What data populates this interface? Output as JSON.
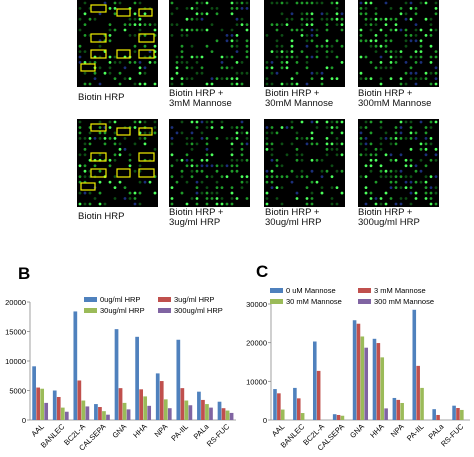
{
  "arrays": {
    "row1": [
      {
        "caption_lines": [
          "Biotin HRP"
        ],
        "boxed": true
      },
      {
        "caption_lines": [
          "Biotin HRP +",
          "3mM Mannose"
        ],
        "boxed": false
      },
      {
        "caption_lines": [
          "Biotin HRP +",
          "30mM Mannose"
        ],
        "boxed": false
      },
      {
        "caption_lines": [
          "Biotin HRP +",
          "300mM Mannose"
        ],
        "boxed": false
      }
    ],
    "row2": [
      {
        "caption_lines": [
          "Biotin HRP"
        ],
        "boxed": true
      },
      {
        "caption_lines": [
          "Biotin HRP +",
          "3ug/ml HRP"
        ],
        "boxed": false
      },
      {
        "caption_lines": [
          "Biotin HRP +",
          "30ug/ml HRP"
        ],
        "boxed": false
      },
      {
        "caption_lines": [
          "Biotin HRP +",
          "300ug/ml HRP"
        ],
        "boxed": false
      }
    ],
    "side_labels": [
      "AAL",
      "BANLEC, BC2L-A",
      "CALSEPA",
      "GNA, HHA",
      "NPA",
      "PA-IIL, PALa",
      "RS-FUC"
    ]
  },
  "panels": {
    "b": "B",
    "c": "C"
  },
  "chart_data": [
    {
      "type": "bar",
      "panel": "B",
      "categories": [
        "AAL",
        "BANLEC",
        "BC2L-A",
        "CALSEPA",
        "GNA",
        "HHA",
        "NPA",
        "PA-IIL",
        "PALa",
        "RS-FUC"
      ],
      "series": [
        {
          "name": "0ug/ml HRP",
          "color": "#4f81bd",
          "values": [
            9100,
            5000,
            18400,
            2700,
            15400,
            14100,
            7900,
            13600,
            4800,
            3100
          ]
        },
        {
          "name": "3ug/ml HRP",
          "color": "#c0504d",
          "values": [
            5500,
            3900,
            6700,
            2200,
            5400,
            5200,
            6600,
            5400,
            3400,
            2000
          ]
        },
        {
          "name": "30ug/ml HRP",
          "color": "#9bbb59",
          "values": [
            5300,
            2100,
            3300,
            1500,
            2900,
            4000,
            3500,
            3300,
            2700,
            1600
          ]
        },
        {
          "name": "300ug/ml HRP",
          "color": "#8064a2",
          "values": [
            2900,
            1400,
            2300,
            900,
            1800,
            2400,
            2000,
            2500,
            2100,
            1200
          ]
        }
      ],
      "ylim": [
        0,
        20000
      ],
      "yticks": [
        "0",
        "5000",
        "10000",
        "15000",
        "20000"
      ],
      "legend": "top"
    },
    {
      "type": "bar",
      "panel": "C",
      "categories": [
        "AAL",
        "BANLEC",
        "BC2L-A",
        "CALSEPA",
        "GNA",
        "HHA",
        "NPA",
        "PA-IIL",
        "PALa",
        "RS-FUC"
      ],
      "series": [
        {
          "name": "0 uM Mannose",
          "color": "#4f81bd",
          "values": [
            8000,
            8300,
            20300,
            1500,
            25800,
            21000,
            5700,
            28500,
            2800,
            3700
          ]
        },
        {
          "name": "3 mM Mannose",
          "color": "#c0504d",
          "values": [
            6900,
            5600,
            12700,
            1300,
            24900,
            19900,
            5200,
            14000,
            1300,
            3100
          ]
        },
        {
          "name": "30 mM Mannose",
          "color": "#9bbb59",
          "values": [
            2700,
            1800,
            0,
            1100,
            21600,
            16200,
            4400,
            8300,
            0,
            2600
          ]
        },
        {
          "name": "300 mM Mannose",
          "color": "#8064a2",
          "values": [
            0,
            0,
            0,
            0,
            18700,
            3000,
            0,
            0,
            0,
            0
          ]
        }
      ],
      "ylim": [
        0,
        30000
      ],
      "yticks": [
        "0",
        "10000",
        "20000",
        "30000"
      ],
      "legend": "top"
    }
  ]
}
